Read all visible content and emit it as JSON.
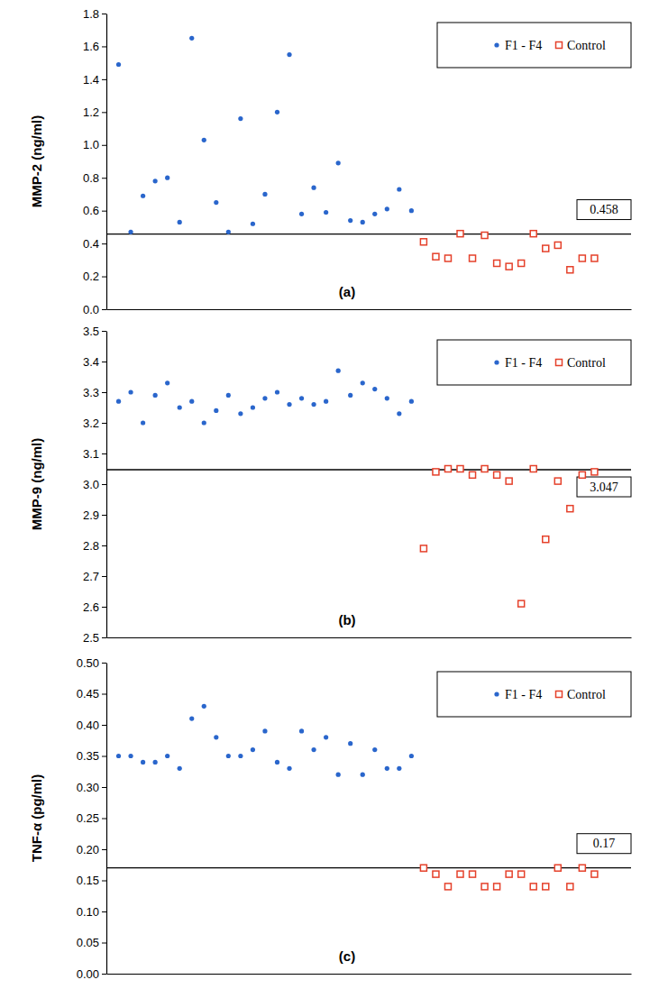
{
  "chart_data": [
    {
      "type": "scatter",
      "title": "(a)",
      "y_label": "MMP-2 (ng/ml)",
      "xlim": [
        0,
        43
      ],
      "ylim": [
        0,
        1.8
      ],
      "yticks": [
        {
          "value": 0,
          "label": "0.0"
        },
        {
          "value": 0.2,
          "label": "0.2"
        },
        {
          "value": 0.4,
          "label": "0.4"
        },
        {
          "value": 0.6,
          "label": "0.6"
        },
        {
          "value": 0.8,
          "label": "0.8"
        },
        {
          "value": 1,
          "label": "1.0"
        },
        {
          "value": 1.2,
          "label": "1.2"
        },
        {
          "value": 1.4,
          "label": "1.4"
        },
        {
          "value": 1.6,
          "label": "1.6"
        },
        {
          "value": 1.8,
          "label": "1.8"
        }
      ],
      "tick_labels": "y",
      "legend": "upper right",
      "reference_line": {
        "value": 0.458,
        "label": "0.458"
      },
      "series": [
        {
          "name": "F1 - F4",
          "color": "#2a66cc",
          "marker": "circle",
          "x": [
            1,
            2,
            3,
            4,
            5,
            6,
            7,
            8,
            9,
            10,
            11,
            12,
            13,
            14,
            15,
            16,
            17,
            18,
            19,
            20,
            21,
            22,
            23,
            24,
            25
          ],
          "values": [
            1.49,
            0.47,
            0.69,
            0.78,
            0.8,
            0.53,
            1.65,
            1.03,
            0.65,
            0.47,
            1.16,
            0.52,
            0.7,
            1.2,
            1.55,
            0.58,
            0.74,
            0.59,
            0.89,
            0.54,
            0.53,
            0.58,
            0.61,
            0.73,
            0.6
          ]
        },
        {
          "name": "Control",
          "color": "#e5412b",
          "marker": "square",
          "x": [
            26,
            27,
            28,
            29,
            30,
            31,
            32,
            33,
            34,
            35,
            36,
            37,
            38,
            39,
            40
          ],
          "values": [
            0.41,
            0.32,
            0.31,
            0.46,
            0.31,
            0.45,
            0.28,
            0.26,
            0.28,
            0.46,
            0.37,
            0.39,
            0.24,
            0.31,
            0.31
          ]
        }
      ]
    },
    {
      "type": "scatter",
      "title": "(b)",
      "y_label": "MMP-9 (ng/ml)",
      "xlim": [
        0,
        43
      ],
      "ylim": [
        2.5,
        3.5
      ],
      "yticks": [
        {
          "value": 2.5,
          "label": "2.5"
        },
        {
          "value": 2.6,
          "label": "2.6"
        },
        {
          "value": 2.7,
          "label": "2.7"
        },
        {
          "value": 2.8,
          "label": "2.8"
        },
        {
          "value": 2.9,
          "label": "2.9"
        },
        {
          "value": 3,
          "label": "3.0"
        },
        {
          "value": 3.1,
          "label": "3.1"
        },
        {
          "value": 3.2,
          "label": "3.2"
        },
        {
          "value": 3.3,
          "label": "3.3"
        },
        {
          "value": 3.4,
          "label": "3.4"
        },
        {
          "value": 3.5,
          "label": "3.5"
        }
      ],
      "tick_labels": "y",
      "legend": "upper right",
      "reference_line": {
        "value": 3.047,
        "label": "3.047"
      },
      "series": [
        {
          "name": "F1 - F4",
          "color": "#2a66cc",
          "marker": "circle",
          "x": [
            1,
            2,
            3,
            4,
            5,
            6,
            7,
            8,
            9,
            10,
            11,
            12,
            13,
            14,
            15,
            16,
            17,
            18,
            19,
            20,
            21,
            22,
            23,
            24,
            25
          ],
          "values": [
            3.27,
            3.3,
            3.2,
            3.29,
            3.33,
            3.25,
            3.27,
            3.2,
            3.24,
            3.29,
            3.23,
            3.25,
            3.28,
            3.3,
            3.26,
            3.28,
            3.26,
            3.27,
            3.37,
            3.29,
            3.33,
            3.31,
            3.28,
            3.23,
            3.27
          ]
        },
        {
          "name": "Control",
          "color": "#e5412b",
          "marker": "square",
          "x": [
            26,
            27,
            28,
            29,
            30,
            31,
            32,
            33,
            34,
            35,
            36,
            37,
            38,
            39,
            40
          ],
          "values": [
            2.79,
            3.04,
            3.05,
            3.05,
            3.03,
            3.05,
            3.03,
            3.01,
            2.61,
            3.05,
            2.82,
            3.01,
            2.92,
            3.03,
            3.04
          ]
        }
      ]
    },
    {
      "type": "scatter",
      "title": "(c)",
      "y_label": "TNF-α (pg/ml)",
      "xlim": [
        0,
        43
      ],
      "ylim": [
        0,
        0.5
      ],
      "yticks": [
        {
          "value": 0,
          "label": "0.00"
        },
        {
          "value": 0.05,
          "label": "0.05"
        },
        {
          "value": 0.1,
          "label": "0.10"
        },
        {
          "value": 0.15,
          "label": "0.15"
        },
        {
          "value": 0.2,
          "label": "0.20"
        },
        {
          "value": 0.25,
          "label": "0.25"
        },
        {
          "value": 0.3,
          "label": "0.30"
        },
        {
          "value": 0.35,
          "label": "0.35"
        },
        {
          "value": 0.4,
          "label": "0.40"
        },
        {
          "value": 0.45,
          "label": "0.45"
        },
        {
          "value": 0.5,
          "label": "0.50"
        }
      ],
      "tick_labels": "y",
      "legend": "upper right",
      "reference_line": {
        "value": 0.17,
        "label": "0.17"
      },
      "series": [
        {
          "name": "F1 - F4",
          "color": "#2a66cc",
          "marker": "circle",
          "x": [
            1,
            2,
            3,
            4,
            5,
            6,
            7,
            8,
            9,
            10,
            11,
            12,
            13,
            14,
            15,
            16,
            17,
            18,
            19,
            20,
            21,
            22,
            23,
            24,
            25
          ],
          "values": [
            0.35,
            0.35,
            0.34,
            0.34,
            0.35,
            0.33,
            0.41,
            0.43,
            0.38,
            0.35,
            0.35,
            0.36,
            0.39,
            0.34,
            0.33,
            0.39,
            0.36,
            0.38,
            0.32,
            0.37,
            0.32,
            0.36,
            0.33,
            0.33,
            0.35
          ]
        },
        {
          "name": "Control",
          "color": "#e5412b",
          "marker": "square",
          "x": [
            26,
            27,
            28,
            29,
            30,
            31,
            32,
            33,
            34,
            35,
            36,
            37,
            38,
            39,
            40
          ],
          "values": [
            0.17,
            0.16,
            0.14,
            0.16,
            0.16,
            0.14,
            0.14,
            0.16,
            0.16,
            0.14,
            0.14,
            0.17,
            0.14,
            0.17,
            0.16
          ]
        }
      ]
    }
  ]
}
